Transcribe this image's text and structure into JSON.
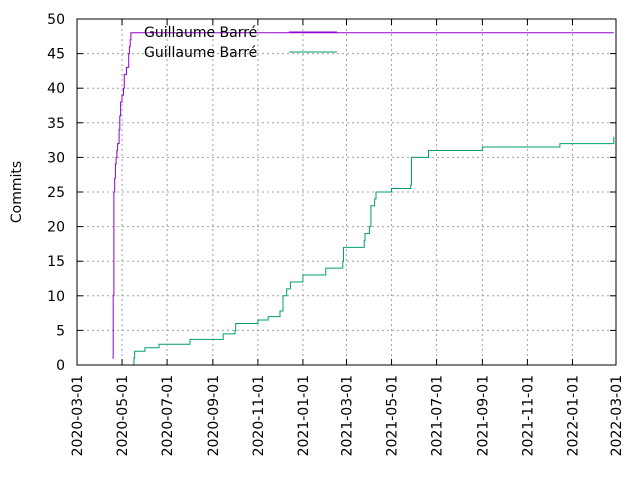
{
  "chart_data": {
    "type": "line",
    "title": "",
    "xlabel": "",
    "ylabel": "Commits",
    "ylim": [
      0,
      50
    ],
    "xlim": [
      "2020-03-01",
      "2022-03-01"
    ],
    "yticks": [
      0,
      5,
      10,
      15,
      20,
      25,
      30,
      35,
      40,
      45,
      50
    ],
    "xticks": [
      "2020-03-01",
      "2020-05-01",
      "2020-07-01",
      "2020-09-01",
      "2020-11-01",
      "2021-01-01",
      "2021-03-01",
      "2021-05-01",
      "2021-07-01",
      "2021-09-01",
      "2021-11-01",
      "2022-01-01",
      "2022-03-01"
    ],
    "grid": true,
    "legend_position": "top-left",
    "series": [
      {
        "name": "Guillaume Barré",
        "color": "#9400d3",
        "step": true,
        "points": [
          [
            "2020-04-18",
            1
          ],
          [
            "2020-04-19",
            10
          ],
          [
            "2020-04-20",
            25
          ],
          [
            "2020-04-21",
            27
          ],
          [
            "2020-04-22",
            29
          ],
          [
            "2020-04-23",
            30
          ],
          [
            "2020-04-24",
            31
          ],
          [
            "2020-04-25",
            32
          ],
          [
            "2020-04-27",
            34
          ],
          [
            "2020-04-28",
            36
          ],
          [
            "2020-04-29",
            38
          ],
          [
            "2020-05-01",
            39
          ],
          [
            "2020-05-03",
            40
          ],
          [
            "2020-05-04",
            42
          ],
          [
            "2020-05-07",
            43
          ],
          [
            "2020-05-10",
            45
          ],
          [
            "2020-05-11",
            46
          ],
          [
            "2020-05-12",
            47
          ],
          [
            "2020-05-13",
            48
          ],
          [
            "2022-02-26",
            48
          ]
        ]
      },
      {
        "name": "Guillaume Barré",
        "color": "#009e73",
        "step": true,
        "points": [
          [
            "2020-05-16",
            0
          ],
          [
            "2020-05-17",
            1
          ],
          [
            "2020-05-18",
            2
          ],
          [
            "2020-06-01",
            2.5
          ],
          [
            "2020-06-20",
            3
          ],
          [
            "2020-08-01",
            3.7
          ],
          [
            "2020-09-15",
            4.5
          ],
          [
            "2020-10-01",
            5
          ],
          [
            "2020-10-02",
            6
          ],
          [
            "2020-11-01",
            6.5
          ],
          [
            "2020-11-15",
            7
          ],
          [
            "2020-12-01",
            7.8
          ],
          [
            "2020-12-05",
            10
          ],
          [
            "2020-12-10",
            11
          ],
          [
            "2020-12-15",
            12
          ],
          [
            "2021-01-01",
            13
          ],
          [
            "2021-02-01",
            14
          ],
          [
            "2021-02-24",
            15
          ],
          [
            "2021-02-25",
            17
          ],
          [
            "2021-03-25",
            18
          ],
          [
            "2021-03-26",
            19
          ],
          [
            "2021-04-01",
            20
          ],
          [
            "2021-04-03",
            23
          ],
          [
            "2021-04-08",
            24
          ],
          [
            "2021-04-10",
            25
          ],
          [
            "2021-05-01",
            25.5
          ],
          [
            "2021-05-27",
            26
          ],
          [
            "2021-05-28",
            30
          ],
          [
            "2021-06-20",
            31
          ],
          [
            "2021-09-01",
            31.5
          ],
          [
            "2021-12-15",
            32
          ],
          [
            "2022-02-26",
            33
          ]
        ]
      }
    ]
  }
}
